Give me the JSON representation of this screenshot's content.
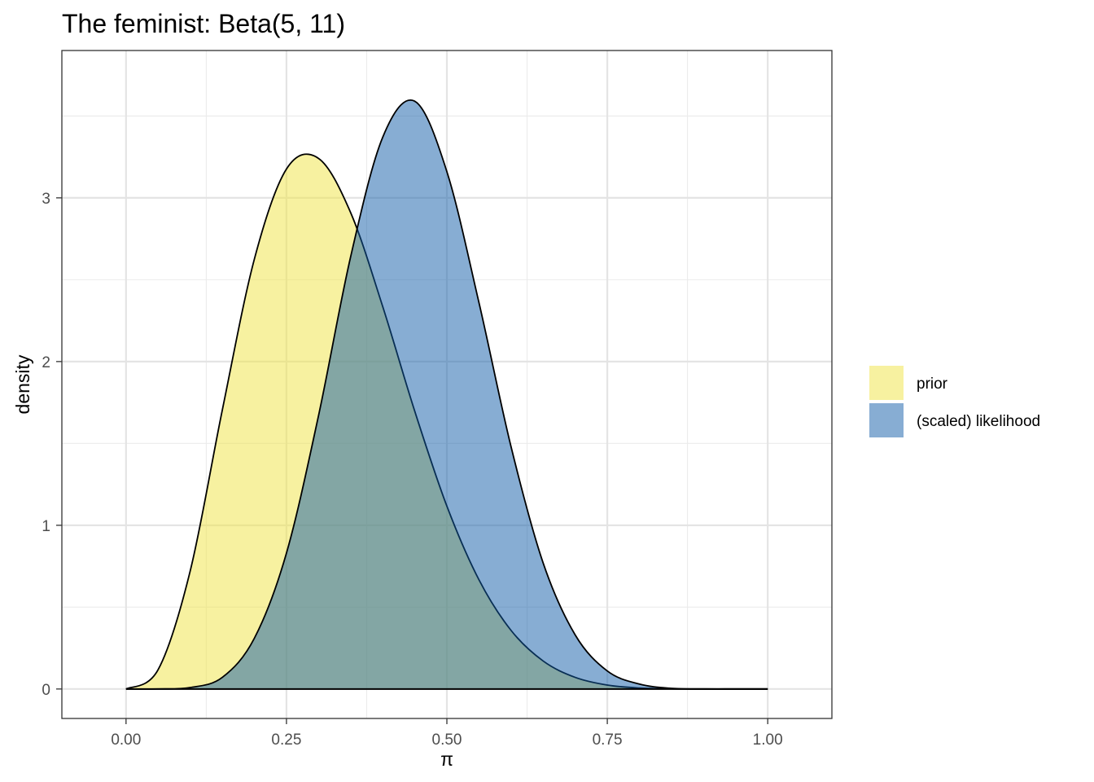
{
  "chart_data": {
    "type": "area",
    "title": "The feminist: Beta(5, 11)",
    "xlabel": "π",
    "ylabel": "density",
    "xlim": [
      -0.1,
      1.1
    ],
    "ylim": [
      -0.18,
      3.9
    ],
    "x_ticks": [
      0,
      0.25,
      0.5,
      0.75,
      1.0
    ],
    "x_tick_labels": [
      "0.00",
      "0.25",
      "0.50",
      "0.75",
      "1.00"
    ],
    "y_ticks": [
      0,
      1,
      2,
      3
    ],
    "y_tick_labels": [
      "0",
      "1",
      "2",
      "3"
    ],
    "grid": true,
    "legend_position": "right",
    "series": [
      {
        "name": "prior",
        "color": "#f0e442",
        "distribution": "Beta(5, 11)",
        "x": [
          0,
          0.05,
          0.1,
          0.15,
          0.2,
          0.25,
          0.3,
          0.35,
          0.4,
          0.45,
          0.5,
          0.55,
          0.6,
          0.65,
          0.7,
          0.75,
          0.8,
          0.85,
          0.9,
          0.95,
          1.0
        ],
        "values": [
          0,
          0.118,
          0.721,
          1.703,
          2.626,
          3.176,
          3.241,
          2.91,
          2.336,
          1.696,
          1.117,
          0.667,
          0.358,
          0.171,
          0.071,
          0.024,
          0.006,
          0.001,
          0.0001,
          0,
          0
        ]
      },
      {
        "name": "(scaled) likelihood",
        "color": "#0f5ba8",
        "x": [
          0,
          0.05,
          0.1,
          0.15,
          0.2,
          0.25,
          0.3,
          0.35,
          0.4,
          0.45,
          0.5,
          0.55,
          0.6,
          0.65,
          0.7,
          0.75,
          0.8,
          0.85,
          0.9,
          0.95,
          1.0
        ],
        "values": [
          0,
          0.0003,
          0.009,
          0.071,
          0.31,
          0.83,
          1.67,
          2.64,
          3.37,
          3.59,
          3.16,
          2.36,
          1.48,
          0.77,
          0.33,
          0.11,
          0.03,
          0.004,
          0.0003,
          0,
          0
        ]
      }
    ]
  }
}
